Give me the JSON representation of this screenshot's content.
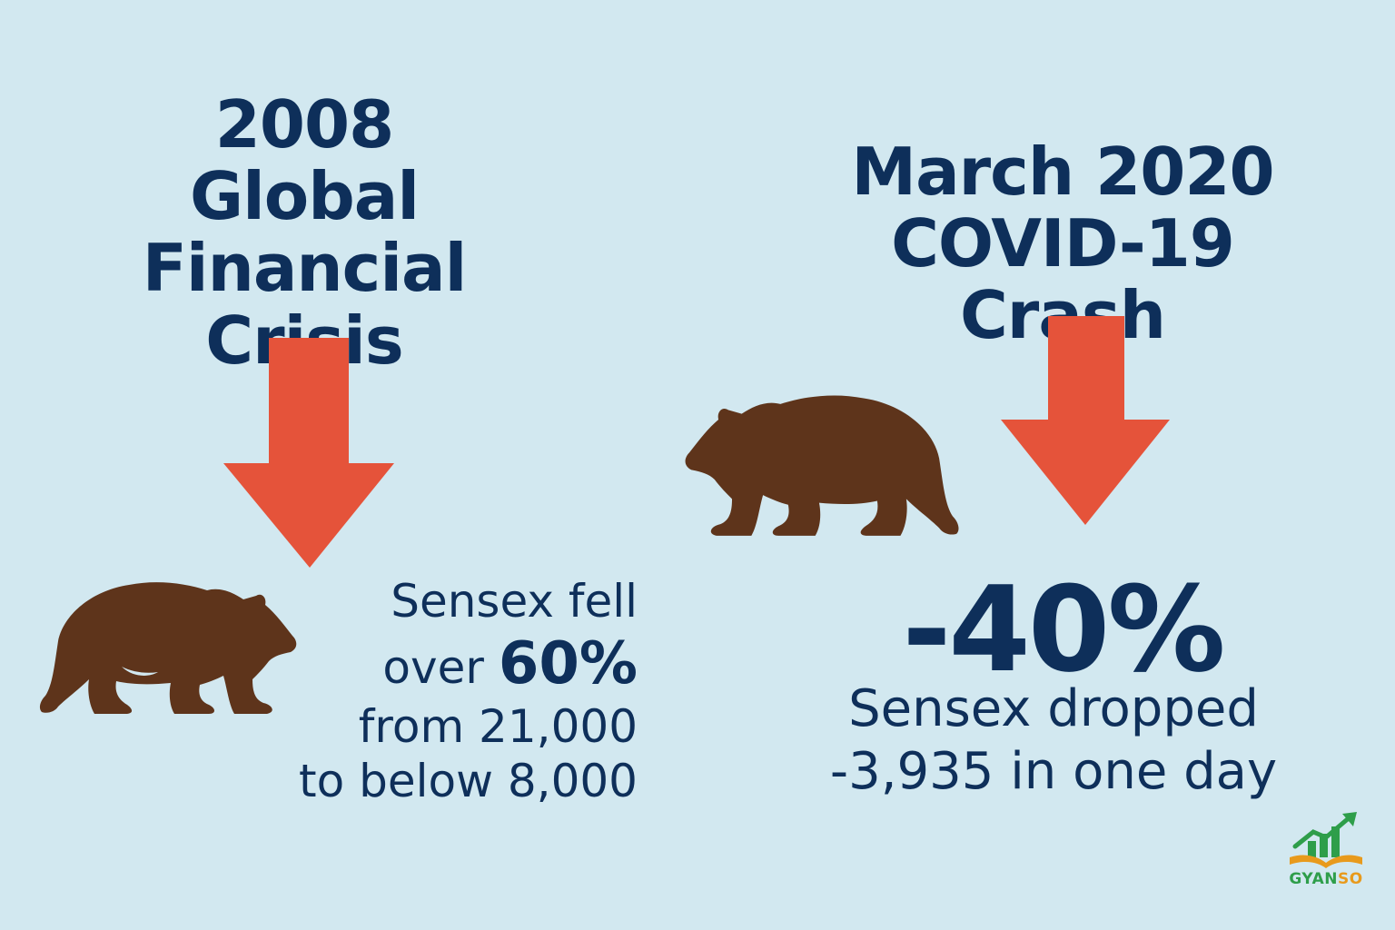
{
  "left": {
    "title_lines": [
      "2008",
      "Global Financial",
      "Crisis"
    ],
    "lines": [
      "Sensex fell",
      "over",
      "60%",
      "from 21,000",
      "to below 8,000"
    ]
  },
  "right": {
    "title_lines": [
      "March 2020",
      "COVID-19 Crash"
    ],
    "headline": "-40%",
    "lines": [
      "Sensex dropped",
      "-3,935 in one day"
    ]
  },
  "logo": {
    "word_part1": "GYAN",
    "word_part2": "SO"
  },
  "colors": {
    "background": "#d2e8f0",
    "text": "#0e2f5a",
    "arrow": "#e5533a",
    "bear": "#5e341b",
    "logo_green": "#2e9e4a",
    "logo_orange": "#e89a1c"
  },
  "icons": [
    "down-arrow-icon",
    "bear-icon",
    "gyanso-logo-icon"
  ]
}
